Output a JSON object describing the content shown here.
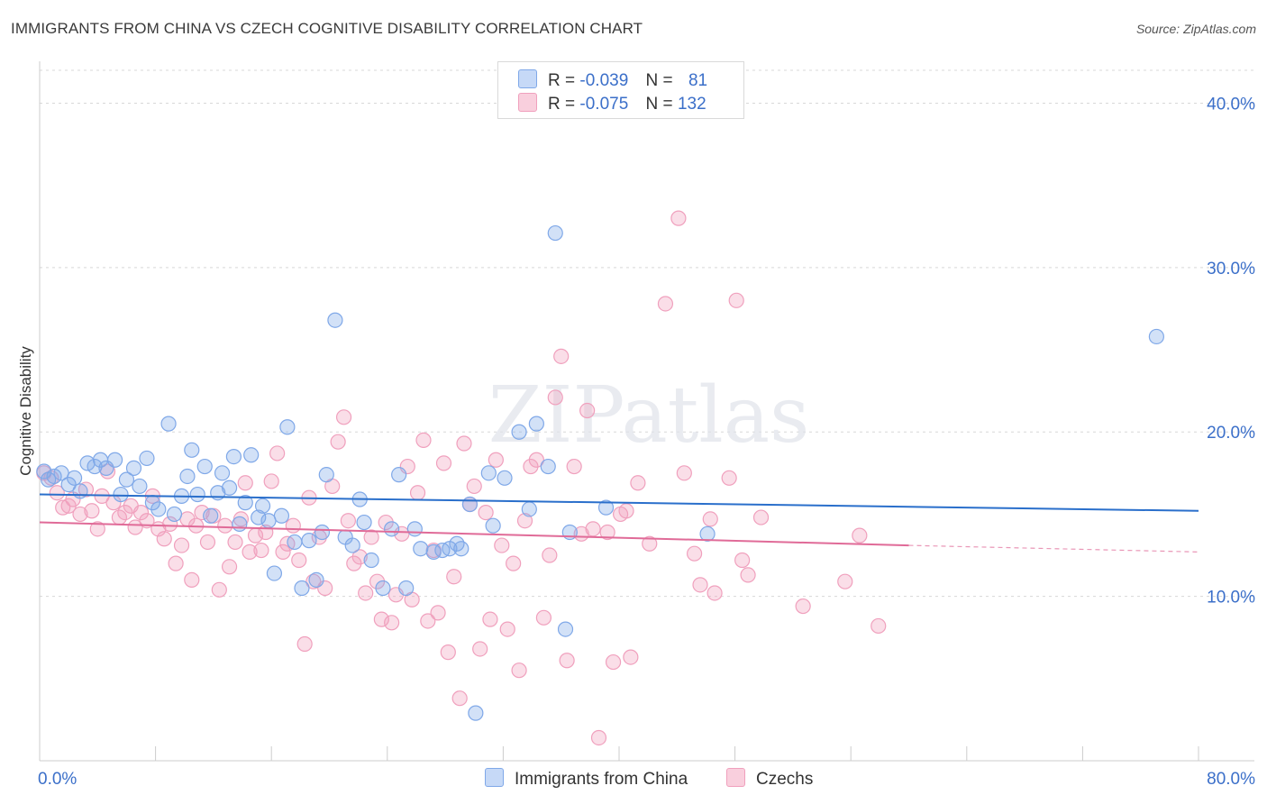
{
  "chart_data": {
    "type": "scatter",
    "title": "IMMIGRANTS FROM CHINA VS CZECH COGNITIVE DISABILITY CORRELATION CHART",
    "source": "Source: ZipAtlas.com",
    "ylabel": "Cognitive Disability",
    "xlim": [
      0,
      80
    ],
    "ylim": [
      0,
      42
    ],
    "x_tick_labels": [
      "0.0%",
      "80.0%"
    ],
    "y_ticks": [
      10,
      20,
      30,
      40
    ],
    "y_tick_labels": [
      "10.0%",
      "20.0%",
      "30.0%",
      "40.0%"
    ],
    "watermark": "ZIPatlas",
    "legend": [
      {
        "r_label": "R =",
        "r_value": "-0.039",
        "n_label": "N =",
        "n_value": "81"
      },
      {
        "r_label": "R =",
        "r_value": "-0.075",
        "n_label": "N =",
        "n_value": "132"
      }
    ],
    "colors": {
      "china": "#7fa8e8",
      "czech": "#f0a0bd",
      "china_line": "#2a6fcb",
      "czech_line": "#e06b98",
      "tick_text": "#3b6fc9"
    },
    "series": [
      {
        "name": "Immigrants from China",
        "trend": {
          "x0": 0,
          "y0": 16.2,
          "x1": 80,
          "y1": 15.2
        },
        "points": [
          [
            0.3,
            17.6
          ],
          [
            0.6,
            17.1
          ],
          [
            1,
            17.3
          ],
          [
            1.5,
            17.5
          ],
          [
            2,
            16.8
          ],
          [
            2.4,
            17.2
          ],
          [
            2.8,
            16.4
          ],
          [
            3.3,
            18.1
          ],
          [
            3.8,
            17.9
          ],
          [
            4.2,
            18.3
          ],
          [
            4.6,
            17.8
          ],
          [
            5.2,
            18.3
          ],
          [
            5.6,
            16.2
          ],
          [
            6,
            17.1
          ],
          [
            6.5,
            17.8
          ],
          [
            6.9,
            16.7
          ],
          [
            7.4,
            18.4
          ],
          [
            7.8,
            15.7
          ],
          [
            8.2,
            15.3
          ],
          [
            8.9,
            20.5
          ],
          [
            9.3,
            15
          ],
          [
            9.8,
            16.1
          ],
          [
            10.2,
            17.3
          ],
          [
            10.5,
            18.9
          ],
          [
            10.9,
            16.2
          ],
          [
            11.4,
            17.9
          ],
          [
            11.8,
            14.9
          ],
          [
            12.3,
            16.3
          ],
          [
            12.6,
            17.5
          ],
          [
            13.1,
            16.6
          ],
          [
            13.4,
            18.5
          ],
          [
            13.8,
            14.4
          ],
          [
            14.2,
            15.7
          ],
          [
            14.6,
            18.6
          ],
          [
            15.1,
            14.8
          ],
          [
            15.4,
            15.5
          ],
          [
            15.8,
            14.6
          ],
          [
            16.2,
            11.4
          ],
          [
            16.7,
            14.9
          ],
          [
            17.1,
            20.3
          ],
          [
            17.6,
            13.3
          ],
          [
            18.1,
            10.5
          ],
          [
            18.6,
            13.4
          ],
          [
            19.1,
            11
          ],
          [
            19.5,
            13.9
          ],
          [
            19.8,
            17.4
          ],
          [
            20.4,
            26.8
          ],
          [
            21.1,
            13.6
          ],
          [
            21.6,
            13.1
          ],
          [
            22.1,
            15.9
          ],
          [
            22.4,
            14.5
          ],
          [
            22.9,
            12.2
          ],
          [
            23.7,
            10.5
          ],
          [
            24.3,
            14.1
          ],
          [
            24.8,
            17.4
          ],
          [
            25.3,
            10.5
          ],
          [
            25.9,
            14.1
          ],
          [
            26.3,
            12.9
          ],
          [
            27.2,
            12.7
          ],
          [
            27.8,
            12.8
          ],
          [
            28.3,
            12.9
          ],
          [
            28.8,
            13.2
          ],
          [
            29.1,
            12.9
          ],
          [
            29.7,
            15.6
          ],
          [
            30.1,
            2.9
          ],
          [
            31,
            17.5
          ],
          [
            31.3,
            14.3
          ],
          [
            32.1,
            17.2
          ],
          [
            33.1,
            20
          ],
          [
            33.8,
            15.3
          ],
          [
            34.3,
            20.5
          ],
          [
            35.1,
            17.9
          ],
          [
            35.6,
            32.1
          ],
          [
            36.3,
            8
          ],
          [
            36.6,
            13.9
          ],
          [
            39.1,
            15.4
          ],
          [
            46.1,
            13.8
          ],
          [
            77.1,
            25.8
          ]
        ]
      },
      {
        "name": "Czechs",
        "trend": {
          "x0": 0,
          "y0": 14.5,
          "x1": 60,
          "y1": 13.1,
          "dash_x1": 80,
          "dash_y1": 12.7
        },
        "points": [
          [
            0.3,
            17.5
          ],
          [
            0.8,
            17.2
          ],
          [
            1.2,
            16.3
          ],
          [
            1.6,
            15.4
          ],
          [
            2,
            15.5
          ],
          [
            2.3,
            15.9
          ],
          [
            2.8,
            15
          ],
          [
            3.2,
            16.5
          ],
          [
            3.6,
            15.2
          ],
          [
            4,
            14.1
          ],
          [
            4.3,
            16.1
          ],
          [
            4.7,
            17.6
          ],
          [
            5.1,
            15.7
          ],
          [
            5.5,
            14.8
          ],
          [
            5.9,
            15.1
          ],
          [
            6.3,
            15.5
          ],
          [
            6.6,
            14.2
          ],
          [
            7,
            15.1
          ],
          [
            7.4,
            14.6
          ],
          [
            7.8,
            16.1
          ],
          [
            8.2,
            14.1
          ],
          [
            8.6,
            13.5
          ],
          [
            9,
            14.4
          ],
          [
            9.4,
            12
          ],
          [
            9.8,
            13.1
          ],
          [
            10.2,
            14.7
          ],
          [
            10.5,
            11
          ],
          [
            10.8,
            14.3
          ],
          [
            11.2,
            15.1
          ],
          [
            11.6,
            13.3
          ],
          [
            12,
            14.9
          ],
          [
            12.4,
            10.4
          ],
          [
            12.8,
            14.3
          ],
          [
            13.1,
            11.8
          ],
          [
            13.5,
            13.3
          ],
          [
            13.9,
            14.7
          ],
          [
            14.2,
            16.9
          ],
          [
            14.5,
            12.7
          ],
          [
            14.9,
            13.7
          ],
          [
            15.3,
            12.8
          ],
          [
            15.6,
            13.9
          ],
          [
            16,
            17
          ],
          [
            16.4,
            18.7
          ],
          [
            16.8,
            12.7
          ],
          [
            17.1,
            13.2
          ],
          [
            17.5,
            14.3
          ],
          [
            17.9,
            12.2
          ],
          [
            18.3,
            7.1
          ],
          [
            18.6,
            16
          ],
          [
            18.9,
            10.9
          ],
          [
            19.3,
            13.6
          ],
          [
            19.7,
            10.5
          ],
          [
            20.2,
            16.7
          ],
          [
            20.6,
            19.4
          ],
          [
            21,
            20.9
          ],
          [
            21.3,
            14.6
          ],
          [
            21.7,
            12
          ],
          [
            22.1,
            12.4
          ],
          [
            22.5,
            10.2
          ],
          [
            22.9,
            13.6
          ],
          [
            23.3,
            10.9
          ],
          [
            23.6,
            8.6
          ],
          [
            23.9,
            14.5
          ],
          [
            24.3,
            8.4
          ],
          [
            24.6,
            10.1
          ],
          [
            25,
            13.8
          ],
          [
            25.4,
            17.9
          ],
          [
            25.7,
            9.8
          ],
          [
            26.1,
            16.3
          ],
          [
            26.5,
            19.5
          ],
          [
            26.8,
            8.5
          ],
          [
            27.2,
            12.8
          ],
          [
            27.5,
            9
          ],
          [
            27.9,
            18.1
          ],
          [
            28.2,
            6.6
          ],
          [
            28.6,
            11.2
          ],
          [
            29,
            3.8
          ],
          [
            29.3,
            19.3
          ],
          [
            29.7,
            15.6
          ],
          [
            30,
            16.7
          ],
          [
            30.4,
            6.8
          ],
          [
            30.8,
            15.1
          ],
          [
            31.1,
            8.6
          ],
          [
            31.5,
            18.3
          ],
          [
            31.9,
            13.1
          ],
          [
            32.3,
            8
          ],
          [
            32.7,
            12
          ],
          [
            33.1,
            5.5
          ],
          [
            33.5,
            14.6
          ],
          [
            33.9,
            17.9
          ],
          [
            34.3,
            18.3
          ],
          [
            34.8,
            8.7
          ],
          [
            35.2,
            12.5
          ],
          [
            35.6,
            22.1
          ],
          [
            36,
            24.6
          ],
          [
            36.4,
            6.1
          ],
          [
            36.9,
            17.9
          ],
          [
            37.4,
            13.8
          ],
          [
            37.8,
            21.3
          ],
          [
            38.2,
            14.1
          ],
          [
            38.6,
            1.4
          ],
          [
            39.2,
            13.9
          ],
          [
            39.6,
            6
          ],
          [
            40.1,
            15
          ],
          [
            40.5,
            15.2
          ],
          [
            40.8,
            6.3
          ],
          [
            41.3,
            16.9
          ],
          [
            42.1,
            13.2
          ],
          [
            43.2,
            27.8
          ],
          [
            44.1,
            33
          ],
          [
            44.5,
            17.5
          ],
          [
            45.2,
            12.6
          ],
          [
            45.6,
            10.7
          ],
          [
            46.3,
            14.7
          ],
          [
            46.6,
            10.2
          ],
          [
            47.6,
            17.2
          ],
          [
            48.1,
            28
          ],
          [
            48.5,
            12.2
          ],
          [
            48.9,
            11.3
          ],
          [
            49.8,
            14.8
          ],
          [
            52.7,
            9.4
          ],
          [
            55.6,
            10.9
          ],
          [
            56.6,
            13.7
          ],
          [
            57.9,
            8.2
          ]
        ]
      }
    ]
  }
}
